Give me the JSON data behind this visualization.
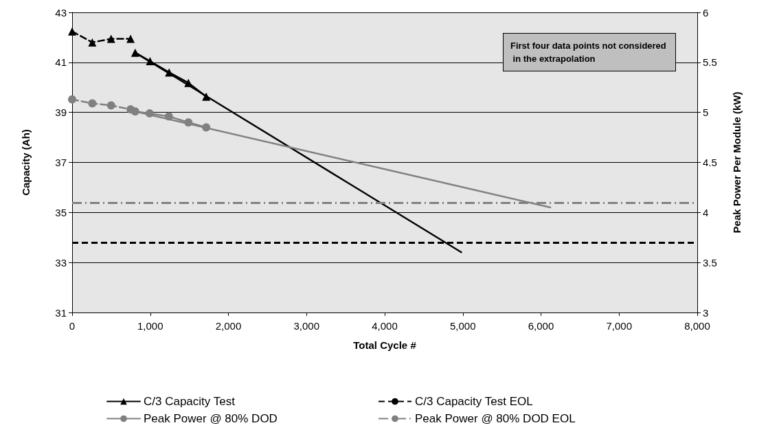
{
  "chart_data": {
    "type": "line",
    "xlabel": "Total Cycle #",
    "ylabel": "Capacity (Ah)",
    "y2label": "Peak Power Per Module (kW)",
    "xlim": [
      0,
      8000
    ],
    "xticks": [
      0,
      {
        "value": 1000,
        "label": "1,000"
      },
      {
        "value": 2000,
        "label": "2,000"
      },
      {
        "value": 3000,
        "label": "3,000"
      },
      {
        "value": 4000,
        "label": "4,000"
      },
      {
        "value": 5000,
        "label": "5,000"
      },
      {
        "value": 6000,
        "label": "6,000"
      },
      {
        "value": 7000,
        "label": "7,000"
      },
      {
        "value": 8000,
        "label": "8,000"
      }
    ],
    "ylim": [
      31,
      43
    ],
    "yticks": [
      31,
      33,
      35,
      37,
      39,
      41,
      43
    ],
    "y2lim": [
      3,
      6
    ],
    "y2ticks": [
      3,
      3.5,
      4,
      4.5,
      5,
      5.5,
      6
    ],
    "grid": "y",
    "legend": "bottom",
    "series": [
      {
        "color": "#000000",
        "marker": "triangle",
        "line_style": "dashed",
        "x": [
          0,
          258,
          499,
          748
        ],
        "values": [
          42.24,
          41.8,
          41.94,
          41.94
        ]
      },
      {
        "name": "C/3 Capacity Test",
        "color": "#000000",
        "marker": "triangle",
        "line_style": "solid",
        "x": [
          807,
          997,
          1241,
          1488,
          1716
        ],
        "values": [
          41.39,
          41.05,
          40.6,
          40.18,
          39.63
        ]
      },
      {
        "color": "#000000",
        "marker": "none",
        "line_style": "solid",
        "x": [
          807,
          4980
        ],
        "values": [
          41.39,
          33.41
        ]
      },
      {
        "color": "#808080",
        "marker": "circle",
        "line_style": "dashed",
        "axis": "y2",
        "x": [
          0,
          258,
          499,
          748
        ],
        "values": [
          5.13,
          5.09,
          5.07,
          5.03
        ]
      },
      {
        "name": "Peak Power @ 80% DOD",
        "color": "#808080",
        "marker": "circle",
        "line_style": "solid",
        "axis": "y2",
        "x": [
          807,
          992,
          1238,
          1488,
          1716
        ],
        "values": [
          5.01,
          4.99,
          4.96,
          4.9,
          4.85
        ]
      },
      {
        "color": "#808080",
        "marker": "none",
        "line_style": "solid",
        "axis": "y2",
        "x": [
          807,
          6120
        ],
        "values": [
          5.01,
          4.05
        ]
      }
    ],
    "ref_lines": [
      {
        "axis": "y",
        "value": 33.8,
        "label": "C/3 Capacity Test EOL",
        "color": "#000000",
        "line_style": "dashed"
      },
      {
        "axis": "y2",
        "value": 4.1,
        "label": "Peak Power @ 80% DOD EOL",
        "color": "#808080",
        "line_style": "dashdot"
      }
    ],
    "annotations": [
      "First four data points not considered in the extrapolation"
    ]
  }
}
